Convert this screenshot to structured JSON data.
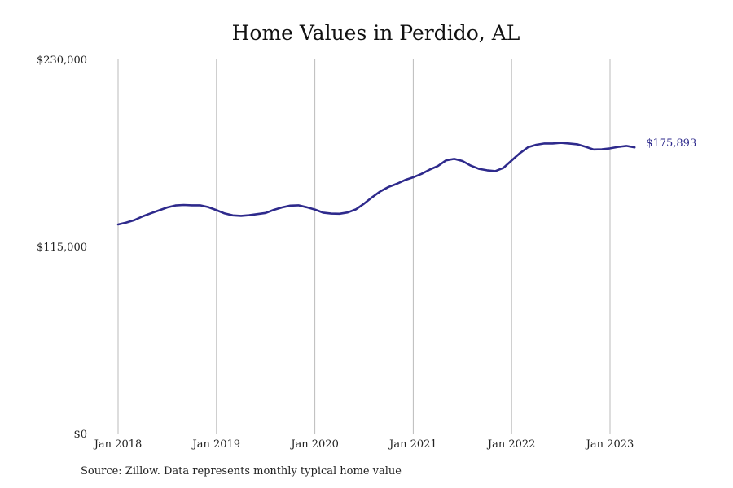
{
  "title": "Home Values in Perdido, AL",
  "source": "Source: Zillow. Data represents monthly typical home value",
  "colors": {
    "line": "#2E2A8C",
    "grid": "#BBBBBB",
    "text": "#222222"
  },
  "chart_data": {
    "type": "line",
    "title": "Home Values in Perdido, AL",
    "xlabel": "",
    "ylabel": "",
    "ylim": [
      0,
      230000
    ],
    "yticks": [
      {
        "value": 0,
        "label": "$0"
      },
      {
        "value": 115000,
        "label": "$115,000"
      },
      {
        "value": 230000,
        "label": "$230,000"
      }
    ],
    "xticks": [
      {
        "value": "2018-01",
        "label": "Jan 2018"
      },
      {
        "value": "2019-01",
        "label": "Jan 2019"
      },
      {
        "value": "2020-01",
        "label": "Jan 2020"
      },
      {
        "value": "2021-01",
        "label": "Jan 2021"
      },
      {
        "value": "2022-01",
        "label": "Jan 2022"
      },
      {
        "value": "2023-01",
        "label": "Jan 2023"
      }
    ],
    "grid": "vertical",
    "end_label": "$175,893",
    "series": [
      {
        "x": [
          "2018-01",
          "2018-02",
          "2018-03",
          "2018-04",
          "2018-05",
          "2018-06",
          "2018-07",
          "2018-08",
          "2018-09",
          "2018-10",
          "2018-11",
          "2018-12",
          "2019-01",
          "2019-02",
          "2019-03",
          "2019-04",
          "2019-05",
          "2019-06",
          "2019-07",
          "2019-08",
          "2019-09",
          "2019-10",
          "2019-11",
          "2019-12",
          "2020-01",
          "2020-02",
          "2020-03",
          "2020-04",
          "2020-05",
          "2020-06",
          "2020-07",
          "2020-08",
          "2020-09",
          "2020-10",
          "2020-11",
          "2020-12",
          "2021-01",
          "2021-02",
          "2021-03",
          "2021-04",
          "2021-05",
          "2021-06",
          "2021-07",
          "2021-08",
          "2021-09",
          "2021-10",
          "2021-11",
          "2021-12",
          "2022-01",
          "2022-02",
          "2022-03",
          "2022-04",
          "2022-05",
          "2022-06",
          "2022-07",
          "2022-08",
          "2022-09",
          "2022-10",
          "2022-11",
          "2022-12",
          "2023-01",
          "2023-02",
          "2023-03",
          "2023-04"
        ],
        "y": [
          128500,
          129700,
          131200,
          133500,
          135400,
          137200,
          139000,
          140200,
          140500,
          140300,
          140300,
          139200,
          137300,
          135300,
          134100,
          133800,
          134200,
          134900,
          135600,
          137500,
          139000,
          140100,
          140300,
          139100,
          137700,
          135800,
          135200,
          135100,
          135900,
          137800,
          141300,
          145300,
          148900,
          151600,
          153500,
          155800,
          157500,
          159600,
          162200,
          164400,
          167900,
          168800,
          167500,
          164700,
          162700,
          161800,
          161300,
          163300,
          167800,
          172300,
          176000,
          177500,
          178300,
          178300,
          178700,
          178300,
          177800,
          176300,
          174600,
          174700,
          175300,
          176200,
          176800,
          175900
        ]
      }
    ]
  }
}
